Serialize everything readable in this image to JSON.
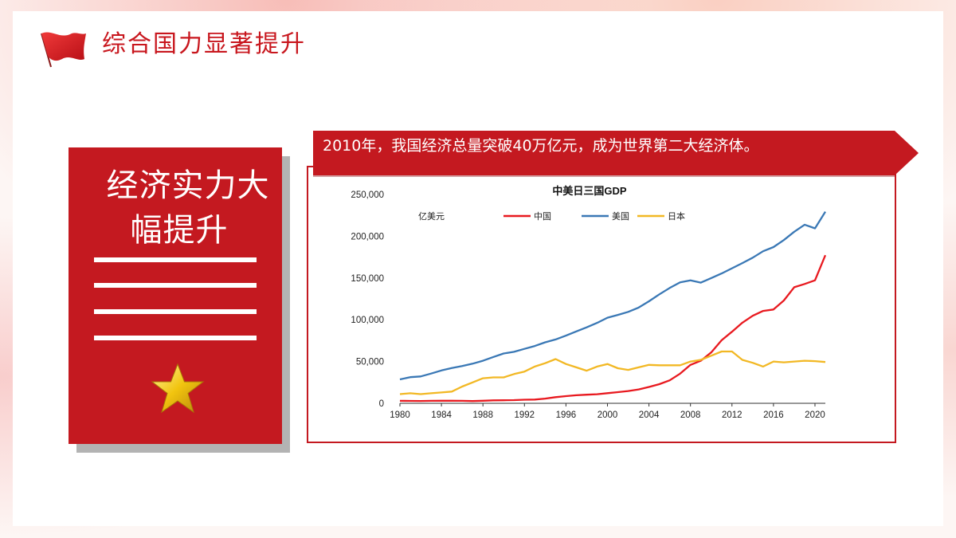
{
  "page": {
    "title": "综合国力显著提升"
  },
  "card": {
    "title_line1": "经济实力大",
    "title_line2": "幅提升"
  },
  "banner": {
    "text": "2010年，我国经济总量突破40万亿元，成为世界第二大经济体。"
  },
  "colors": {
    "primary_red": "#c41920",
    "gold": "#f1c40f"
  },
  "icons": {
    "flag": "red-flag-icon",
    "star": "gold-star-icon"
  },
  "chart_data": {
    "type": "line",
    "title": "中美日三国GDP",
    "unit_label": "亿美元",
    "ylim": [
      0,
      250000
    ],
    "xlim": [
      1980,
      2021
    ],
    "y_ticks": [
      "250,000",
      "200,000",
      "150,000",
      "100,000",
      "50,000",
      "0"
    ],
    "y_tick_values": [
      250000,
      200000,
      150000,
      100000,
      50000,
      0
    ],
    "x_ticks": [
      "1980",
      "1984",
      "1988",
      "1992",
      "1996",
      "2000",
      "2004",
      "2008",
      "2012",
      "2016",
      "2020"
    ],
    "x_tick_values": [
      1980,
      1984,
      1988,
      1992,
      1996,
      2000,
      2004,
      2008,
      2012,
      2016,
      2020
    ],
    "legend_position": "top",
    "x": [
      1980,
      1981,
      1982,
      1983,
      1984,
      1985,
      1986,
      1987,
      1988,
      1989,
      1990,
      1991,
      1992,
      1993,
      1994,
      1995,
      1996,
      1997,
      1998,
      1999,
      2000,
      2001,
      2002,
      2003,
      2004,
      2005,
      2006,
      2007,
      2008,
      2009,
      2010,
      2011,
      2012,
      2013,
      2014,
      2015,
      2016,
      2017,
      2018,
      2019,
      2020,
      2021
    ],
    "series": [
      {
        "name": "中国",
        "color": "#e8191f",
        "values": [
          3000,
          2900,
          2800,
          3000,
          3100,
          3100,
          3000,
          2700,
          3100,
          3500,
          3600,
          3800,
          4300,
          4500,
          5600,
          7300,
          8600,
          9600,
          10300,
          10900,
          12100,
          13400,
          14700,
          16600,
          19600,
          22900,
          27500,
          35500,
          46000,
          51000,
          60900,
          75500,
          85700,
          96500,
          104800,
          110600,
          112300,
          123100,
          138900,
          142800,
          147200,
          177300
        ]
      },
      {
        "name": "美国",
        "color": "#3a78b5",
        "values": [
          28600,
          31300,
          32200,
          35600,
          39300,
          42200,
          44600,
          47400,
          51000,
          55400,
          59600,
          61600,
          65200,
          68600,
          73000,
          76400,
          81000,
          86100,
          90900,
          96300,
          102500,
          105800,
          109400,
          114600,
          122100,
          130400,
          138100,
          144800,
          147100,
          144500,
          149900,
          155400,
          161600,
          167800,
          174300,
          182100,
          187000,
          195400,
          205300,
          213800,
          209400,
          229400
        ]
      },
      {
        "name": "日本",
        "color": "#f2b824",
        "values": [
          11000,
          12000,
          11000,
          12000,
          13000,
          14000,
          20000,
          25000,
          30000,
          31000,
          31000,
          35000,
          38000,
          44000,
          48000,
          53000,
          47000,
          43000,
          39000,
          44000,
          47000,
          42000,
          40000,
          43000,
          46000,
          45500,
          45500,
          45500,
          50000,
          52000,
          57000,
          62000,
          62000,
          52000,
          48500,
          44000,
          50000,
          49000,
          50000,
          51000,
          50500,
          49400
        ]
      }
    ]
  }
}
